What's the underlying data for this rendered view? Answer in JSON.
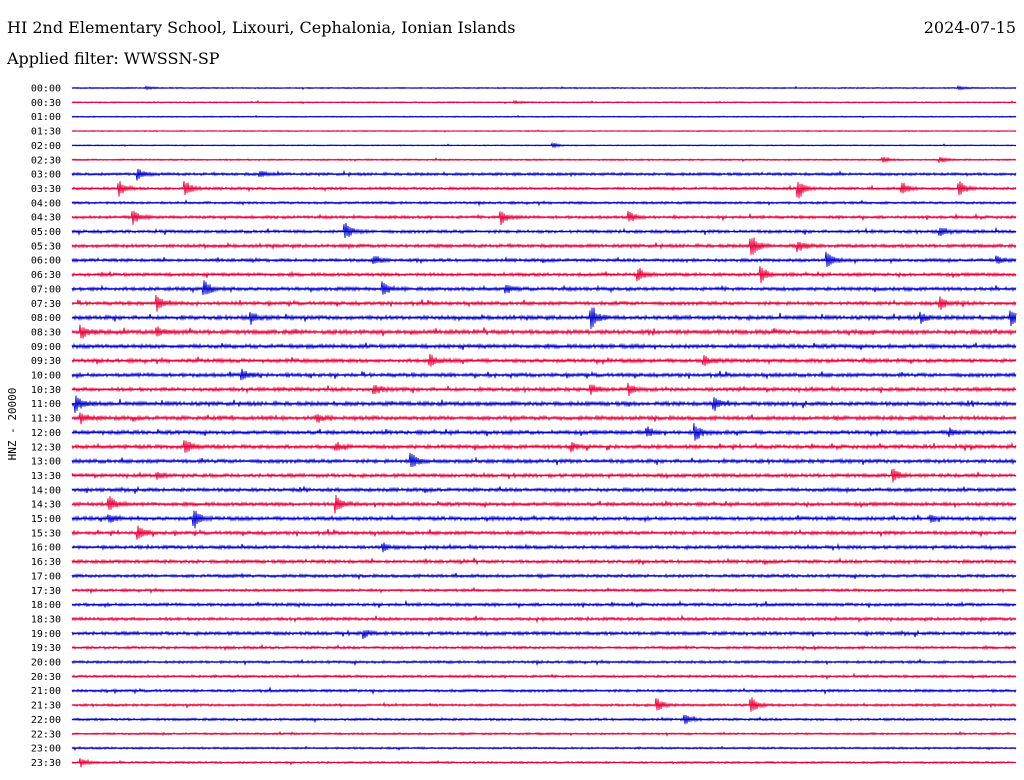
{
  "header": {
    "title": "HI 2nd Elementary School, Lixouri, Cephalonia, Ionian Islands",
    "date": "2024-07-15",
    "filter_label": "Applied filter: WWSSN-SP"
  },
  "chart_data": {
    "type": "line",
    "title": "HI 2nd Elementary School, Lixouri, Cephalonia, Ionian Islands",
    "subtitle": "Applied filter: WWSSN-SP",
    "ylabel": "HNZ - 20000",
    "xlabel": "",
    "row_labels": [
      "00:00",
      "00:30",
      "01:00",
      "01:30",
      "02:00",
      "02:30",
      "03:00",
      "03:30",
      "04:00",
      "04:30",
      "05:00",
      "05:30",
      "06:00",
      "06:30",
      "07:00",
      "07:30",
      "08:00",
      "08:30",
      "09:00",
      "09:30",
      "10:00",
      "10:30",
      "11:00",
      "11:30",
      "12:00",
      "12:30",
      "13:00",
      "13:30",
      "14:00",
      "14:30",
      "15:00",
      "15:30",
      "16:00",
      "16:30",
      "17:00",
      "17:30",
      "18:00",
      "18:30",
      "19:00",
      "19:30",
      "20:00",
      "20:30",
      "21:00",
      "21:30",
      "22:00",
      "22:30",
      "23:00",
      "23:30"
    ],
    "colors": [
      "#0000cc",
      "#e8003a"
    ],
    "noise_level": [
      0.3,
      0.3,
      0.25,
      0.25,
      0.25,
      0.35,
      0.6,
      0.6,
      0.55,
      0.65,
      0.7,
      0.75,
      0.7,
      0.75,
      0.8,
      0.8,
      0.9,
      0.95,
      0.9,
      0.85,
      0.85,
      0.85,
      0.9,
      0.9,
      0.85,
      0.85,
      0.85,
      0.8,
      0.8,
      0.8,
      0.85,
      0.8,
      0.75,
      0.75,
      0.7,
      0.6,
      0.7,
      0.7,
      0.75,
      0.6,
      0.6,
      0.55,
      0.6,
      0.55,
      0.55,
      0.45,
      0.45,
      0.45
    ],
    "events": [
      {
        "row": 0,
        "t": 0.08,
        "amp": 1.5
      },
      {
        "row": 0,
        "t": 0.94,
        "amp": 1.5
      },
      {
        "row": 1,
        "t": 0.47,
        "amp": 1.2
      },
      {
        "row": 4,
        "t": 0.51,
        "amp": 2
      },
      {
        "row": 5,
        "t": 0.86,
        "amp": 2.5
      },
      {
        "row": 5,
        "t": 0.92,
        "amp": 3
      },
      {
        "row": 6,
        "t": 0.07,
        "amp": 6
      },
      {
        "row": 6,
        "t": 0.2,
        "amp": 3
      },
      {
        "row": 7,
        "t": 0.05,
        "amp": 8
      },
      {
        "row": 7,
        "t": 0.12,
        "amp": 8
      },
      {
        "row": 7,
        "t": 0.77,
        "amp": 9
      },
      {
        "row": 7,
        "t": 0.88,
        "amp": 6
      },
      {
        "row": 7,
        "t": 0.94,
        "amp": 7
      },
      {
        "row": 9,
        "t": 0.065,
        "amp": 8
      },
      {
        "row": 9,
        "t": 0.455,
        "amp": 7
      },
      {
        "row": 9,
        "t": 0.59,
        "amp": 6
      },
      {
        "row": 10,
        "t": 0.29,
        "amp": 9
      },
      {
        "row": 10,
        "t": 0.92,
        "amp": 5
      },
      {
        "row": 11,
        "t": 0.72,
        "amp": 11
      },
      {
        "row": 11,
        "t": 0.77,
        "amp": 5
      },
      {
        "row": 12,
        "t": 0.32,
        "amp": 5
      },
      {
        "row": 12,
        "t": 0.8,
        "amp": 9
      },
      {
        "row": 12,
        "t": 0.98,
        "amp": 4
      },
      {
        "row": 13,
        "t": 0.6,
        "amp": 7
      },
      {
        "row": 13,
        "t": 0.73,
        "amp": 8
      },
      {
        "row": 14,
        "t": 0.14,
        "amp": 10
      },
      {
        "row": 14,
        "t": 0.33,
        "amp": 7
      },
      {
        "row": 14,
        "t": 0.46,
        "amp": 4
      },
      {
        "row": 15,
        "t": 0.09,
        "amp": 8
      },
      {
        "row": 15,
        "t": 0.92,
        "amp": 6
      },
      {
        "row": 16,
        "t": 0.19,
        "amp": 5
      },
      {
        "row": 16,
        "t": 0.55,
        "amp": 11
      },
      {
        "row": 16,
        "t": 0.9,
        "amp": 5
      },
      {
        "row": 16,
        "t": 0.995,
        "amp": 9
      },
      {
        "row": 17,
        "t": 0.01,
        "amp": 6
      },
      {
        "row": 17,
        "t": 0.09,
        "amp": 5
      },
      {
        "row": 19,
        "t": 0.38,
        "amp": 6
      },
      {
        "row": 19,
        "t": 0.67,
        "amp": 5
      },
      {
        "row": 20,
        "t": 0.18,
        "amp": 5
      },
      {
        "row": 21,
        "t": 0.32,
        "amp": 6
      },
      {
        "row": 21,
        "t": 0.55,
        "amp": 5
      },
      {
        "row": 21,
        "t": 0.59,
        "amp": 6
      },
      {
        "row": 22,
        "t": 0.005,
        "amp": 8
      },
      {
        "row": 22,
        "t": 0.68,
        "amp": 7
      },
      {
        "row": 23,
        "t": 0.01,
        "amp": 5
      },
      {
        "row": 23,
        "t": 0.26,
        "amp": 4
      },
      {
        "row": 24,
        "t": 0.61,
        "amp": 5
      },
      {
        "row": 24,
        "t": 0.66,
        "amp": 10
      },
      {
        "row": 24,
        "t": 0.93,
        "amp": 4
      },
      {
        "row": 25,
        "t": 0.12,
        "amp": 7
      },
      {
        "row": 25,
        "t": 0.28,
        "amp": 4
      },
      {
        "row": 25,
        "t": 0.53,
        "amp": 4
      },
      {
        "row": 26,
        "t": 0.36,
        "amp": 8
      },
      {
        "row": 27,
        "t": 0.09,
        "amp": 4
      },
      {
        "row": 27,
        "t": 0.87,
        "amp": 6
      },
      {
        "row": 29,
        "t": 0.04,
        "amp": 8
      },
      {
        "row": 29,
        "t": 0.28,
        "amp": 9
      },
      {
        "row": 30,
        "t": 0.04,
        "amp": 5
      },
      {
        "row": 30,
        "t": 0.13,
        "amp": 9
      },
      {
        "row": 30,
        "t": 0.91,
        "amp": 4
      },
      {
        "row": 31,
        "t": 0.07,
        "amp": 8
      },
      {
        "row": 32,
        "t": 0.33,
        "amp": 4
      },
      {
        "row": 38,
        "t": 0.31,
        "amp": 4
      },
      {
        "row": 43,
        "t": 0.62,
        "amp": 7
      },
      {
        "row": 43,
        "t": 0.72,
        "amp": 8
      },
      {
        "row": 44,
        "t": 0.65,
        "amp": 4
      },
      {
        "row": 47,
        "t": 0.01,
        "amp": 4
      }
    ]
  }
}
